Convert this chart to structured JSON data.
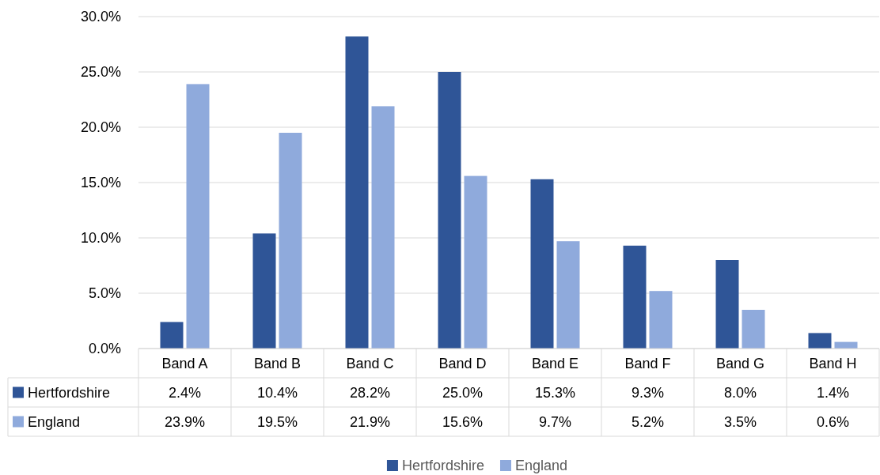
{
  "chart_data": {
    "type": "bar",
    "categories": [
      "Band A",
      "Band B",
      "Band C",
      "Band D",
      "Band E",
      "Band F",
      "Band G",
      "Band H"
    ],
    "series": [
      {
        "name": "Hertfordshire",
        "color": "#2f5597",
        "values": [
          2.4,
          10.4,
          28.2,
          25.0,
          15.3,
          9.3,
          8.0,
          1.4
        ],
        "value_labels": [
          "2.4%",
          "10.4%",
          "28.2%",
          "25.0%",
          "15.3%",
          "9.3%",
          "8.0%",
          "1.4%"
        ]
      },
      {
        "name": "England",
        "color": "#8faadc",
        "values": [
          23.9,
          19.5,
          21.9,
          15.6,
          9.7,
          5.2,
          3.5,
          0.6
        ],
        "value_labels": [
          "23.9%",
          "19.5%",
          "21.9%",
          "15.6%",
          "9.7%",
          "5.2%",
          "3.5%",
          "0.6%"
        ]
      }
    ],
    "ylim": [
      0,
      30
    ],
    "yticks": [
      {
        "value": 0,
        "label": "0.0%"
      },
      {
        "value": 5,
        "label": "5.0%"
      },
      {
        "value": 10,
        "label": "10.0%"
      },
      {
        "value": 15,
        "label": "15.0%"
      },
      {
        "value": 20,
        "label": "20.0%"
      },
      {
        "value": 25,
        "label": "25.0%"
      },
      {
        "value": 30,
        "label": "30.0%"
      }
    ],
    "grid": "y",
    "legend": "bottom"
  }
}
